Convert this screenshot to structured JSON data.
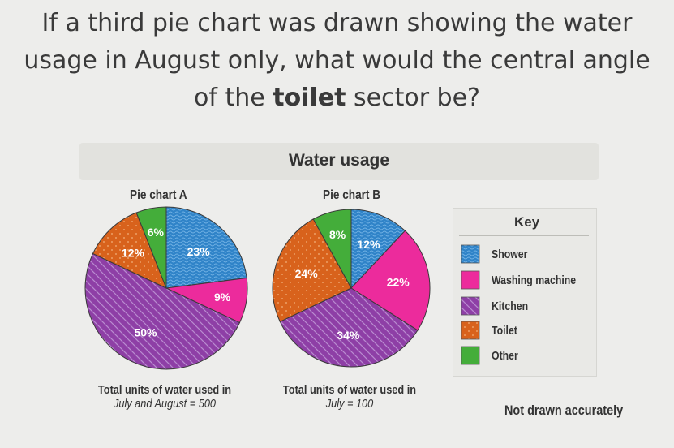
{
  "question": {
    "line1": "If a third pie chart was drawn showing the water",
    "line2": "usage in August only, what would the central angle",
    "line3_pre": "of the ",
    "line3_bold": "toilet",
    "line3_post": " sector be?"
  },
  "chart_title": "Water usage",
  "colors": {
    "Shower": "#2f83c8",
    "Washing machine": "#ec2b9c",
    "Kitchen": "#8e3fa6",
    "Toilet": "#d8621c",
    "Other": "#44ad3a"
  },
  "chart_data": [
    {
      "type": "pie",
      "title": "Pie chart A",
      "slices": [
        {
          "label": "Shower",
          "value": 23,
          "text": "23%"
        },
        {
          "label": "Washing machine",
          "value": 9,
          "text": "9%"
        },
        {
          "label": "Kitchen",
          "value": 50,
          "text": "50%"
        },
        {
          "label": "Toilet",
          "value": 12,
          "text": "12%"
        },
        {
          "label": "Other",
          "value": 6,
          "text": "6%"
        }
      ],
      "footnote_line1": "Total units of water used in",
      "footnote_line2": "July and August = 500"
    },
    {
      "type": "pie",
      "title": "Pie chart B",
      "slices": [
        {
          "label": "Shower",
          "value": 12,
          "text": "12%"
        },
        {
          "label": "Washing machine",
          "value": 22,
          "text": "22%"
        },
        {
          "label": "Kitchen",
          "value": 34,
          "text": "34%"
        },
        {
          "label": "Toilet",
          "value": 24,
          "text": "24%"
        },
        {
          "label": "Other",
          "value": 8,
          "text": "8%"
        }
      ],
      "footnote_line1": "Total units of water used in",
      "footnote_line2": "July = 100"
    }
  ],
  "key": {
    "title": "Key",
    "items": [
      "Shower",
      "Washing machine",
      "Kitchen",
      "Toilet",
      "Other"
    ]
  },
  "note": "Not drawn accurately"
}
